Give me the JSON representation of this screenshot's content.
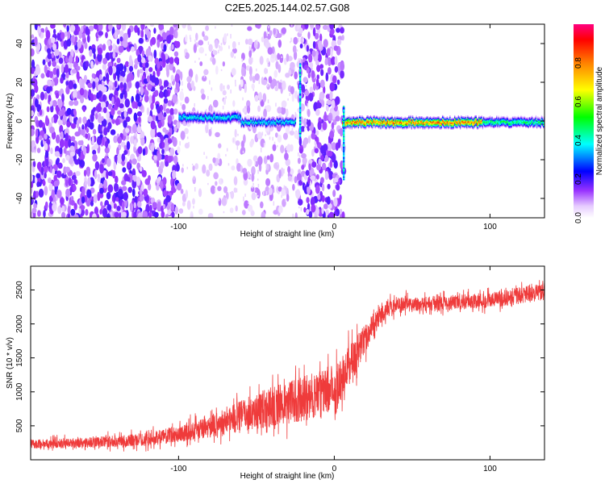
{
  "chart_data": [
    {
      "type": "heatmap",
      "title": "C2E5.2025.144.02.57.G08",
      "xlabel": "Height of straight line (km)",
      "ylabel": "Frequency (Hz)",
      "xlim": [
        -195,
        135
      ],
      "ylim": [
        -50,
        50
      ],
      "x_ticks": [
        -100,
        0,
        100
      ],
      "y_ticks": [
        -40,
        -20,
        0,
        20,
        40
      ],
      "colorbar": {
        "label": "Normalized spectral amplitude",
        "range": [
          0,
          1
        ],
        "ticks": [
          0.0,
          0.2,
          0.4,
          0.6,
          0.8
        ]
      },
      "features": [
        {
          "x_range": [
            -195,
            -100
          ],
          "description_value": "noise"
        },
        {
          "x_range": [
            -100,
            -25
          ],
          "center_freq": 1,
          "peak_amplitude": 0.45
        },
        {
          "x_range": [
            5,
            95
          ],
          "center_freq": -1,
          "peak_amplitude": 1.0
        },
        {
          "x_range": [
            95,
            135
          ],
          "center_freq": -1,
          "peak_amplitude": 0.55
        }
      ],
      "grid": false
    },
    {
      "type": "line",
      "title": "",
      "xlabel": "Height of straight line (km)",
      "ylabel": "SNR (10 * v/v)",
      "xlim": [
        -195,
        135
      ],
      "ylim": [
        0,
        2850
      ],
      "x_ticks": [
        -100,
        0,
        100
      ],
      "y_ticks": [
        500,
        1000,
        1500,
        2000,
        2500
      ],
      "series": [
        {
          "color": "#ef3b3b",
          "trend": {
            "x": [
              -195,
              -150,
              -120,
              -100,
              -80,
              -60,
              -40,
              -20,
              0,
              10,
              20,
              30,
              40,
              60,
              80,
              100,
              120,
              135
            ],
            "y": [
              230,
              260,
              300,
              380,
              480,
              650,
              780,
              900,
              1050,
              1400,
              1800,
              2150,
              2280,
              2300,
              2320,
              2350,
              2420,
              2480
            ]
          },
          "noise_amplitude": [
            120,
            150,
            180,
            220,
            300,
            420,
            550,
            600,
            600,
            600,
            400,
            250,
            220,
            200,
            200,
            210,
            230,
            240
          ]
        }
      ],
      "grid": false
    }
  ]
}
